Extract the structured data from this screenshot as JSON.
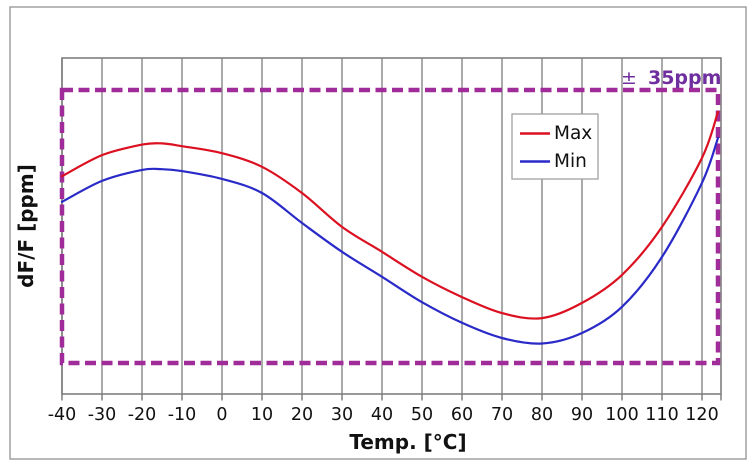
{
  "chart_data": {
    "type": "line",
    "title": "",
    "xlabel": "Temp. [°C]",
    "ylabel": "dF/F [ppm]",
    "x_ticks": [
      -40,
      -30,
      -20,
      -10,
      0,
      10,
      20,
      30,
      40,
      50,
      60,
      70,
      80,
      90,
      100,
      110,
      120
    ],
    "xlim": [
      -40,
      125
    ],
    "ylim": [
      -43,
      43
    ],
    "grid": "vertical-only",
    "legend": {
      "position": "upper-right-inside",
      "entries": [
        {
          "label": "Max",
          "color": "#db1021"
        },
        {
          "label": "Min",
          "color": "#2a2ac8"
        }
      ]
    },
    "tolerance_band": {
      "value_ppm": 35,
      "x_from": -40,
      "x_to": 124,
      "style": "dashed",
      "color": "#a02c99",
      "text_color": "#6f2f9e",
      "label_prefix": "±",
      "label_value": "35ppm"
    },
    "series": [
      {
        "name": "Max",
        "color": "#db1021",
        "points": [
          [
            -40,
            12.9
          ],
          [
            -30,
            18.3
          ],
          [
            -20,
            21.0
          ],
          [
            -15,
            21.3
          ],
          [
            -10,
            20.6
          ],
          [
            0,
            18.8
          ],
          [
            10,
            15.3
          ],
          [
            20,
            8.6
          ],
          [
            30,
            -0.1
          ],
          [
            40,
            -6.5
          ],
          [
            50,
            -12.9
          ],
          [
            60,
            -18.1
          ],
          [
            70,
            -22.2
          ],
          [
            80,
            -23.5
          ],
          [
            90,
            -19.6
          ],
          [
            100,
            -12.4
          ],
          [
            110,
            -0.1
          ],
          [
            120,
            17.6
          ],
          [
            124,
            29.4
          ]
        ]
      },
      {
        "name": "Min",
        "color": "#2a2ac8",
        "points": [
          [
            -40,
            6.3
          ],
          [
            -30,
            11.7
          ],
          [
            -20,
            14.5
          ],
          [
            -15,
            14.7
          ],
          [
            -10,
            14.2
          ],
          [
            0,
            12.2
          ],
          [
            10,
            8.6
          ],
          [
            20,
            0.9
          ],
          [
            30,
            -6.5
          ],
          [
            40,
            -12.9
          ],
          [
            50,
            -19.4
          ],
          [
            60,
            -24.7
          ],
          [
            70,
            -28.6
          ],
          [
            80,
            -30.0
          ],
          [
            90,
            -27.3
          ],
          [
            100,
            -20.6
          ],
          [
            110,
            -7.8
          ],
          [
            120,
            11.2
          ],
          [
            124,
            22.7
          ]
        ]
      }
    ]
  }
}
